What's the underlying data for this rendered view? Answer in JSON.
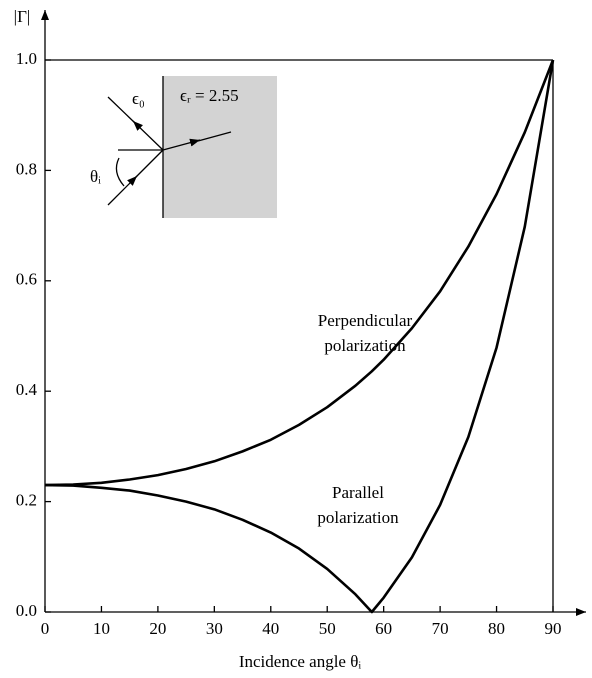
{
  "chart_data": {
    "type": "line",
    "x_label": "Incidence angle θᵢ",
    "y_label": "|Γ|",
    "x": [
      0,
      5,
      10,
      15,
      20,
      25,
      30,
      35,
      40,
      45,
      50,
      55,
      57.9,
      60,
      65,
      70,
      75,
      80,
      85,
      90
    ],
    "series": [
      {
        "name": "Perpendicular polarization",
        "color": "#000000",
        "values": [
          0.23,
          0.231,
          0.234,
          0.24,
          0.248,
          0.259,
          0.273,
          0.291,
          0.312,
          0.339,
          0.371,
          0.41,
          0.436,
          0.457,
          0.514,
          0.581,
          0.662,
          0.757,
          0.869,
          1.0
        ]
      },
      {
        "name": "Parallel polarization",
        "color": "#000000",
        "values": [
          0.23,
          0.229,
          0.225,
          0.22,
          0.211,
          0.2,
          0.186,
          0.167,
          0.144,
          0.115,
          0.078,
          0.032,
          0.0,
          0.026,
          0.099,
          0.194,
          0.317,
          0.479,
          0.698,
          1.0
        ]
      }
    ],
    "annotations": [
      {
        "lines": [
          "Perpendicular",
          "polarization"
        ]
      },
      {
        "lines": [
          "Parallel",
          "polarization"
        ]
      }
    ],
    "inset": {
      "medium_0": "ϵ₀",
      "medium_r": "ϵᵣ = 2.55",
      "angle": "θᵢ"
    },
    "xlim": [
      0,
      90
    ],
    "xticks": [
      0,
      10,
      20,
      30,
      40,
      50,
      60,
      70,
      80,
      90
    ],
    "ylim": [
      0,
      1
    ],
    "yticks": [
      {
        "value": 0,
        "label": "0.0"
      },
      0.2,
      0.4,
      0.6,
      0.8,
      {
        "value": 1,
        "label": "1.0"
      }
    ],
    "grid": false
  }
}
